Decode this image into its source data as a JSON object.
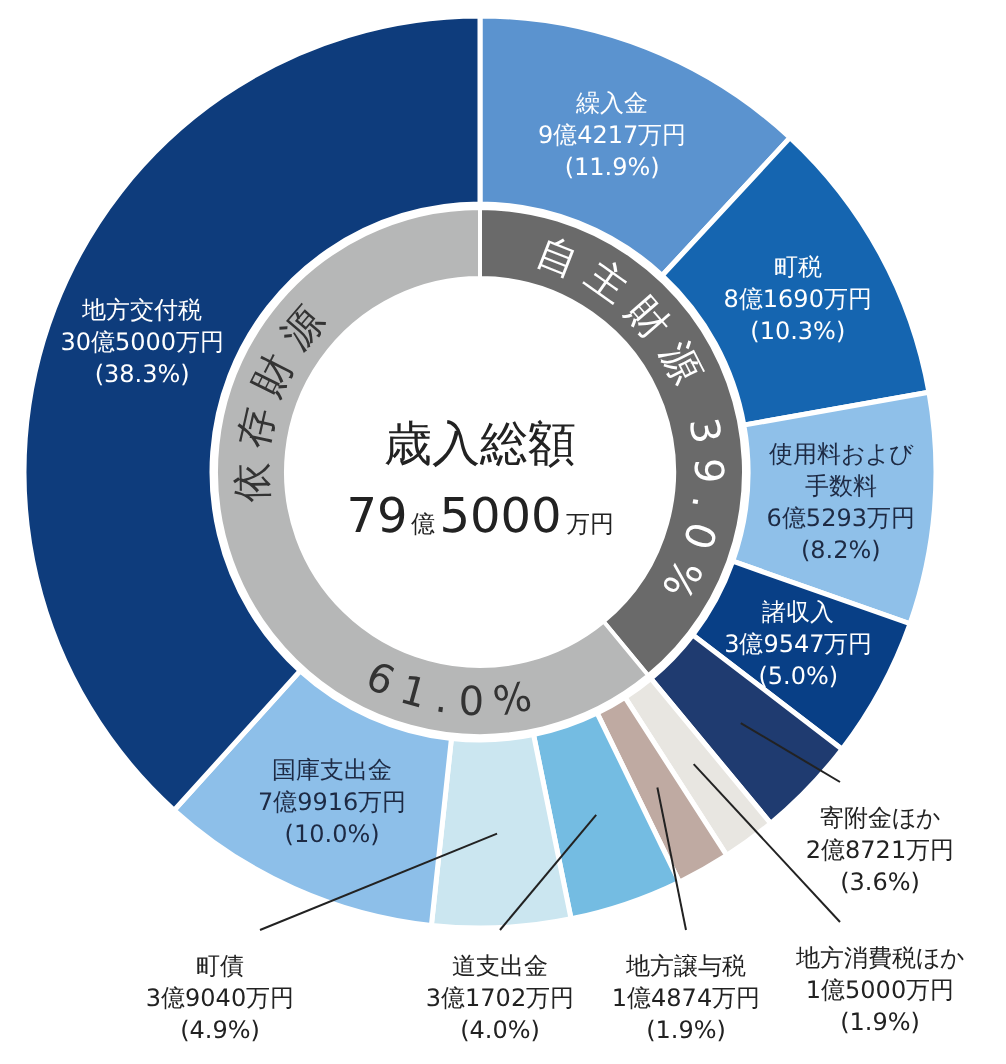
{
  "chart_data": [
    {
      "type": "donut",
      "title": "歳入総額",
      "subtitle": "79億5000万円",
      "categories": [
        "繰入金",
        "町税",
        "使用料および手数料",
        "諸収入",
        "寄附金ほか",
        "地方消費税ほか",
        "地方譲与税",
        "道支出金",
        "町債",
        "国庫支出金",
        "地方交付税"
      ],
      "values": [
        11.9,
        10.3,
        8.2,
        5.0,
        3.6,
        1.9,
        1.9,
        4.0,
        4.9,
        10.0,
        38.3
      ],
      "colors": [
        "#5b93cf",
        "#1565b0",
        "#8fc0e9",
        "#083f86",
        "#1f3b70",
        "#e8e6e1",
        "#bfaaa2",
        "#74bce2",
        "#cbe6f0",
        "#8dbfe9",
        "#0e3c7c"
      ],
      "value_labels": [
        "9億4217万円\n(11.9%)",
        "8億1690万円\n(10.3%)",
        "6億5293万円\n(8.2%)",
        "3億9547万円\n(5.0%)",
        "2億8721万円\n(3.6%)",
        "1億5000万円\n(1.9%)",
        "1億4874万円\n(1.9%)",
        "3億1702万円\n(4.0%)",
        "3億9040万円\n(4.9%)",
        "7億9916万円\n(10.0%)",
        "30億5000万円\n(38.3%)"
      ]
    },
    {
      "type": "donut",
      "categories": [
        "自主財源",
        "依存財源"
      ],
      "values": [
        39.0,
        61.0
      ],
      "colors": [
        "#6a6a6a",
        "#b6b7b7"
      ],
      "value_labels": [
        "39.0%",
        "61.0%"
      ]
    }
  ]
}
